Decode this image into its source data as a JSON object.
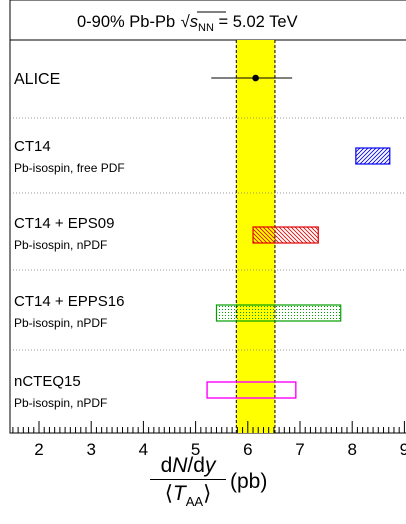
{
  "chart_data": {
    "type": "scatter",
    "title": "0-90% Pb-Pb √sNN = 5.02 TeV",
    "title_parts": {
      "prefix": "0-90% Pb-Pb ",
      "sqrt": "s",
      "sqrt_sub": "NN",
      "suffix": " = 5.02 TeV"
    },
    "xlim": [
      1.5,
      9.1
    ],
    "x_ticks": [
      "2",
      "3",
      "4",
      "5",
      "6",
      "7",
      "8",
      "9"
    ],
    "xlabel": {
      "numerator_prefix": "d",
      "numerator_N": "N",
      "numerator_mid": "/d",
      "numerator_y": "y",
      "denominator_T": "T",
      "denominator_sub": "AA",
      "unit": "(pb)"
    },
    "band": {
      "low": 5.78,
      "high": 6.52,
      "center": 6.15,
      "color": "#ffff00"
    },
    "measurement": {
      "name": "ALICE",
      "value": 6.15,
      "err_low": 5.3,
      "err_high": 6.85
    },
    "predictions": [
      {
        "name": "CT14",
        "subtitle": "Pb-isospin, free PDF",
        "low": 8.07,
        "high": 8.72,
        "color": "#0000ee",
        "fill": "hatch-up"
      },
      {
        "name": "CT14 + EPS09",
        "subtitle": "Pb-isospin, nPDF",
        "low": 6.1,
        "high": 7.35,
        "color": "#e00000",
        "fill": "hatch-down"
      },
      {
        "name": "CT14 + EPPS16",
        "subtitle": "Pb-isospin, nPDF",
        "low": 5.4,
        "high": 7.78,
        "color": "#00a000",
        "fill": "dots"
      },
      {
        "name": "nCTEQ15",
        "subtitle": "Pb-isospin, nPDF",
        "low": 5.22,
        "high": 6.92,
        "color": "#ff00ff",
        "fill": "none"
      }
    ]
  }
}
